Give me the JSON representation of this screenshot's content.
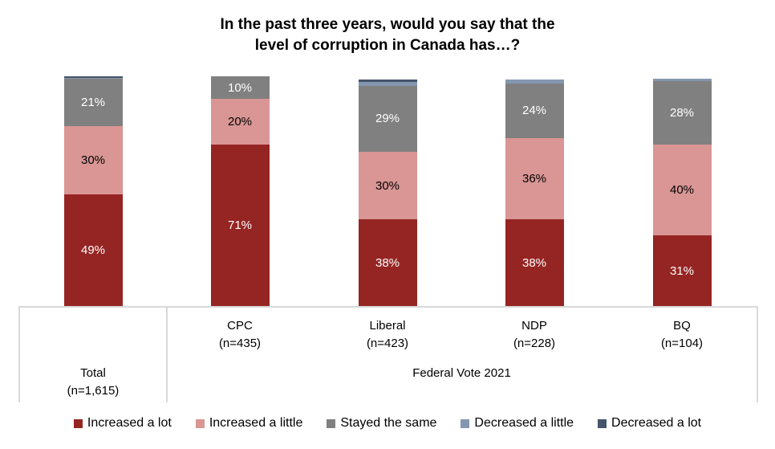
{
  "chart_data": {
    "type": "bar",
    "stacked": true,
    "title": "In the past three years, would you say that the level of corruption in Canada has…?",
    "title_lines": [
      "In the past three years, would you say that the",
      "level of corruption in Canada has…?"
    ],
    "categories": [
      "Total",
      "CPC",
      "Liberal",
      "NDP",
      "BQ"
    ],
    "category_sublabels": [
      "(n=1,615)",
      "(n=435)",
      "(n=423)",
      "(n=228)",
      "(n=104)"
    ],
    "group_label": "Federal Vote 2021",
    "series": [
      {
        "name": "Increased a lot",
        "color": "#952523",
        "values": [
          49,
          71,
          38,
          38,
          31
        ]
      },
      {
        "name": "Increased a little",
        "color": "#d99694",
        "values": [
          30,
          20,
          30,
          36,
          40
        ]
      },
      {
        "name": "Stayed the same",
        "color": "#808080",
        "values": [
          21,
          10,
          29,
          24,
          28
        ]
      },
      {
        "name": "Decreased a little",
        "color": "#8497b0",
        "values": [
          0.5,
          0,
          1.5,
          1.5,
          1
        ]
      },
      {
        "name": "Decreased a lot",
        "color": "#44546a",
        "values": [
          0.5,
          0,
          1,
          0,
          0
        ]
      }
    ],
    "data_labels": [
      [
        "49%",
        "71%",
        "38%",
        "38%",
        "31%"
      ],
      [
        "30%",
        "20%",
        "30%",
        "36%",
        "40%"
      ],
      [
        "21%",
        "10%",
        "29%",
        "24%",
        "28%"
      ]
    ],
    "label_colors": [
      "#ffffff",
      "#000000",
      "#ffffff"
    ],
    "ylim": [
      0,
      100
    ],
    "legend_position": "bottom",
    "grid": false
  }
}
